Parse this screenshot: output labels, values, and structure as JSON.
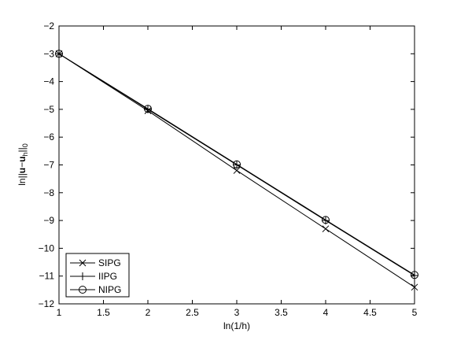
{
  "chart_data": {
    "type": "line",
    "title": "",
    "xlabel": "ln(1/h)",
    "ylabel_parts": [
      "ln||",
      "u",
      "−",
      "u",
      "h",
      "||",
      "0"
    ],
    "xlim": [
      1,
      5
    ],
    "ylim": [
      -12,
      -2
    ],
    "xticks": [
      1,
      1.5,
      2,
      2.5,
      3,
      3.5,
      4,
      4.5,
      5
    ],
    "xtick_labels": [
      "1",
      "1.5",
      "2",
      "2.5",
      "3",
      "3.5",
      "4",
      "4.5",
      "5"
    ],
    "yticks": [
      -12,
      -11,
      -10,
      -9,
      -8,
      -7,
      -6,
      -5,
      -4,
      -3,
      -2
    ],
    "ytick_labels": [
      "−12",
      "−11",
      "−10",
      "−9",
      "−8",
      "−7",
      "−6",
      "−5",
      "−4",
      "−3",
      "−2"
    ],
    "grid": false,
    "legend_position": "bottom-left",
    "x": [
      1,
      2,
      3,
      4,
      5
    ],
    "series": [
      {
        "name": "SIPG",
        "marker": "x",
        "color": "#000000",
        "values": [
          -3.0,
          -5.05,
          -7.2,
          -9.3,
          -11.4
        ]
      },
      {
        "name": "IIPG",
        "marker": "plus",
        "color": "#000000",
        "values": [
          -3.0,
          -5.0,
          -7.0,
          -9.0,
          -10.98
        ]
      },
      {
        "name": "NIPG",
        "marker": "circle",
        "color": "#000000",
        "values": [
          -3.0,
          -4.98,
          -6.98,
          -8.98,
          -10.96
        ]
      }
    ]
  }
}
